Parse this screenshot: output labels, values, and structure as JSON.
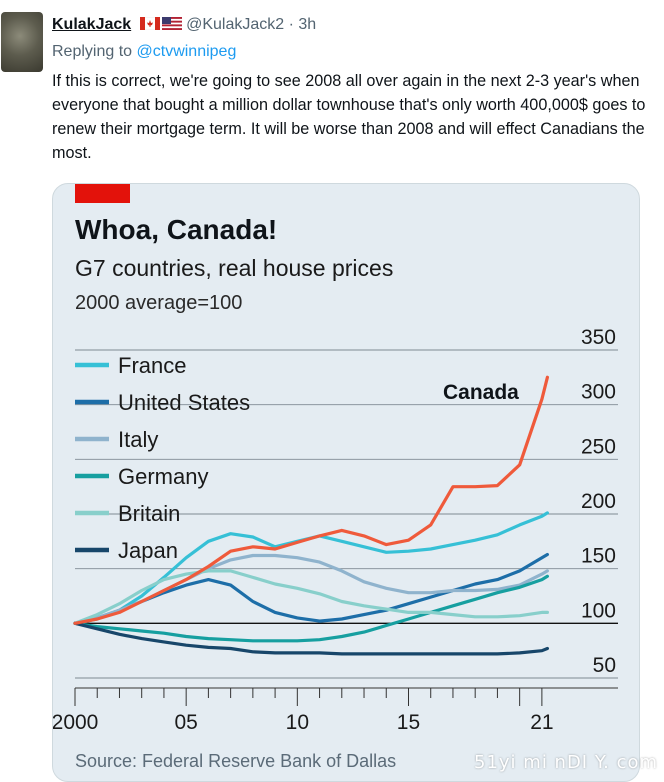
{
  "tweet": {
    "author_name": "KulakJack",
    "handle": "@KulakJack2",
    "time": "· 3h",
    "replying_prefix": "Replying to",
    "replying_to": "@ctvwinnipeg",
    "text": "If this is correct, we're going to see 2008 all over again in the next 2-3 year's when everyone that bought a million dollar townhouse that's only worth 400,000$ goes to renew their mortgage term. It will be worse than 2008 and will effect Canadians the most."
  },
  "icons": [
    "avatar-image",
    "canada-flag-icon",
    "us-flag-icon"
  ],
  "watermark": "51yi mi nDI Y. com",
  "colors": {
    "card_background": "#e4ecf2",
    "economist_red": "#e3120b",
    "canada": "#ef5a3b",
    "france": "#36c0d6",
    "united_states": "#1d6ea8",
    "italy": "#8fb3cd",
    "germany": "#169fa0",
    "britain": "#88cfcb",
    "japan": "#17466a",
    "link": "#1d9bf0"
  },
  "chart_data": {
    "type": "line",
    "title": "Whoa, Canada!",
    "subtitle": "G7 countries, real house prices",
    "unit_note": "2000 average=100",
    "source": "Source: Federal Reserve Bank of Dallas",
    "annotation": "Canada",
    "x_tick_labels": [
      "2000",
      "05",
      "10",
      "15",
      "21"
    ],
    "y_tick_labels": [
      "350",
      "300",
      "250",
      "200",
      "150",
      "100",
      "50"
    ],
    "xlim": [
      2000,
      2021.5
    ],
    "ylim": [
      50,
      350
    ],
    "legend": [
      "France",
      "United States",
      "Italy",
      "Germany",
      "Britain",
      "Japan"
    ],
    "legend_position": "top-left",
    "gridlines": true,
    "x": [
      2000,
      2001,
      2002,
      2003,
      2004,
      2005,
      2006,
      2007,
      2008,
      2009,
      2010,
      2011,
      2012,
      2013,
      2014,
      2015,
      2016,
      2017,
      2018,
      2019,
      2020,
      2021,
      2021.25
    ],
    "series": [
      {
        "name": "France",
        "values": [
          100,
          104,
          112,
          125,
          142,
          160,
          175,
          182,
          179,
          170,
          175,
          180,
          175,
          170,
          165,
          166,
          168,
          172,
          176,
          181,
          190,
          198,
          201
        ]
      },
      {
        "name": "United States",
        "values": [
          100,
          105,
          112,
          120,
          128,
          135,
          140,
          135,
          120,
          110,
          105,
          102,
          104,
          108,
          112,
          118,
          124,
          130,
          136,
          140,
          148,
          160,
          163
        ]
      },
      {
        "name": "Italy",
        "values": [
          100,
          105,
          112,
          120,
          130,
          140,
          150,
          158,
          162,
          162,
          160,
          156,
          148,
          138,
          132,
          128,
          128,
          130,
          130,
          131,
          135,
          145,
          148
        ]
      },
      {
        "name": "Germany",
        "values": [
          100,
          97,
          95,
          93,
          91,
          88,
          86,
          85,
          84,
          84,
          84,
          85,
          88,
          92,
          98,
          104,
          110,
          116,
          122,
          128,
          133,
          140,
          143
        ]
      },
      {
        "name": "Britain",
        "values": [
          100,
          108,
          118,
          130,
          140,
          145,
          148,
          148,
          142,
          136,
          132,
          127,
          120,
          116,
          113,
          110,
          110,
          108,
          106,
          106,
          107,
          110,
          110
        ]
      },
      {
        "name": "Japan",
        "values": [
          100,
          95,
          90,
          86,
          83,
          80,
          78,
          77,
          74,
          73,
          73,
          73,
          72,
          72,
          72,
          72,
          72,
          72,
          72,
          72,
          73,
          75,
          77
        ]
      },
      {
        "name": "Canada",
        "values": [
          100,
          104,
          110,
          120,
          130,
          140,
          152,
          166,
          170,
          168,
          174,
          180,
          185,
          180,
          172,
          176,
          190,
          225,
          225,
          226,
          245,
          305,
          325
        ]
      }
    ]
  }
}
